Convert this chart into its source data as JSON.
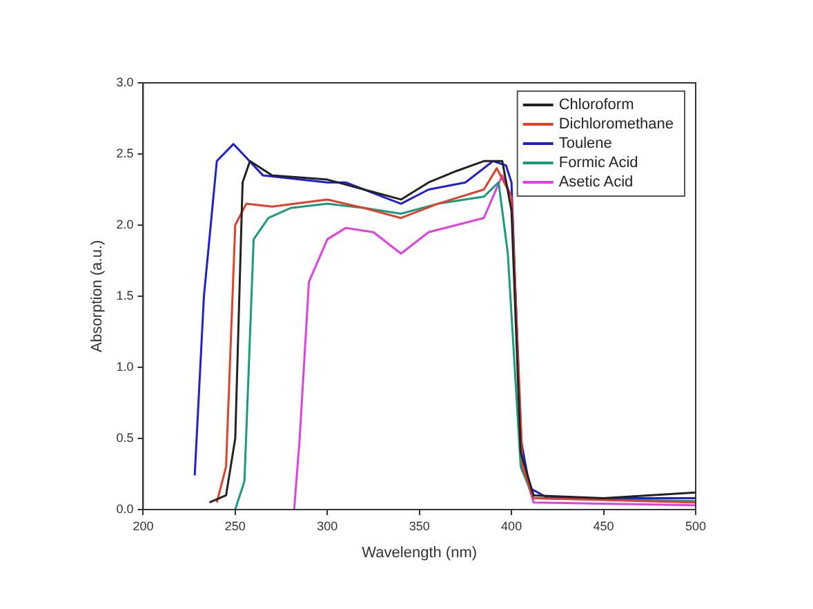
{
  "chart_data": {
    "type": "line",
    "xlabel": "Wavelength (nm)",
    "ylabel": "Absorption (a.u.)",
    "xlim": [
      200,
      500
    ],
    "xticks": [
      200,
      250,
      300,
      350,
      400,
      450,
      500
    ],
    "ylim": [
      0,
      3
    ],
    "yticks": [
      {
        "value": 0,
        "label": "0.0"
      },
      0.5,
      {
        "value": 1,
        "label": "1.0"
      },
      1.5,
      {
        "value": 2,
        "label": "2.0"
      },
      2.5,
      {
        "value": 3,
        "label": "3.0"
      }
    ],
    "grid": false,
    "legend": "top right",
    "marker": "none",
    "line_style": "solid",
    "series": [
      {
        "name": "Chloroform",
        "color": "#222222",
        "x": [
          236,
          245,
          250,
          254,
          258,
          270,
          300,
          320,
          340,
          355,
          370,
          385,
          395,
          400,
          405,
          412,
          450,
          500
        ],
        "values": [
          0.05,
          0.1,
          0.5,
          2.3,
          2.45,
          2.35,
          2.32,
          2.25,
          2.18,
          2.3,
          2.38,
          2.45,
          2.45,
          2.1,
          0.4,
          0.1,
          0.08,
          0.12
        ]
      },
      {
        "name": "Dichloromethane",
        "color": "#e0402a",
        "x": [
          240,
          245,
          250,
          256,
          270,
          300,
          320,
          340,
          360,
          385,
          392,
          400,
          406,
          412,
          500
        ],
        "values": [
          0.05,
          0.3,
          2.0,
          2.15,
          2.13,
          2.18,
          2.12,
          2.05,
          2.15,
          2.25,
          2.4,
          2.2,
          0.3,
          0.08,
          0.05
        ]
      },
      {
        "name": "Toulene",
        "color": "#2020d0",
        "x": [
          228,
          233,
          240,
          249,
          265,
          300,
          310,
          330,
          340,
          355,
          375,
          390,
          397,
          400,
          405,
          410,
          420,
          500
        ],
        "values": [
          0.24,
          1.5,
          2.45,
          2.57,
          2.35,
          2.3,
          2.3,
          2.2,
          2.15,
          2.25,
          2.3,
          2.45,
          2.42,
          2.3,
          0.5,
          0.15,
          0.08,
          0.08
        ]
      },
      {
        "name": "Formic Acid",
        "color": "#1a9a7a",
        "x": [
          250,
          255,
          260,
          268,
          280,
          300,
          320,
          340,
          360,
          385,
          393,
          398,
          405,
          412,
          500
        ],
        "values": [
          0.0,
          0.2,
          1.9,
          2.05,
          2.12,
          2.15,
          2.12,
          2.08,
          2.15,
          2.2,
          2.3,
          1.8,
          0.3,
          0.08,
          0.06
        ]
      },
      {
        "name": "Asetic Acid",
        "color": "#e040e0",
        "x": [
          282,
          285,
          290,
          300,
          310,
          325,
          340,
          355,
          385,
          395,
          400,
          406,
          412,
          500
        ],
        "values": [
          0.0,
          0.5,
          1.6,
          1.9,
          1.98,
          1.95,
          1.8,
          1.95,
          2.05,
          2.35,
          2.2,
          0.3,
          0.05,
          0.03
        ]
      }
    ]
  }
}
